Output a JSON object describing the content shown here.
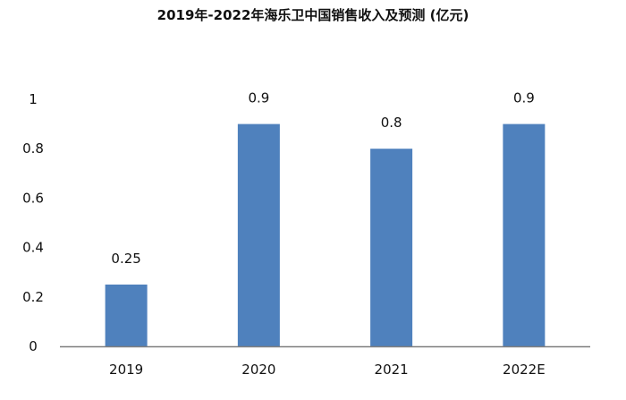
{
  "chart_data": {
    "type": "bar",
    "title": "2019年-2022年海乐卫中国销售收入及预测 (亿元)",
    "categories": [
      "2019",
      "2020",
      "2021",
      "2022E"
    ],
    "values": [
      0.25,
      0.9,
      0.8,
      0.9
    ],
    "data_labels": [
      "0.25",
      "0.9",
      "0.8",
      "0.9"
    ],
    "y_ticks": [
      "0",
      "0.2",
      "0.4",
      "0.6",
      "0.8",
      "1"
    ],
    "ylim": [
      0,
      1
    ],
    "xlabel": "",
    "ylabel": "",
    "grid": false,
    "legend": "none",
    "bar_color": "#4f81bd",
    "axis_color": "#7f7f7f"
  }
}
